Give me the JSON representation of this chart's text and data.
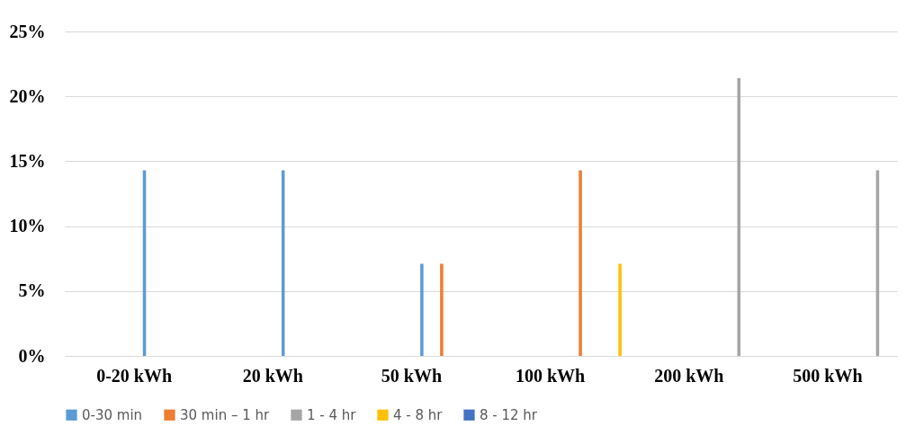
{
  "chart_data": {
    "type": "bar",
    "categories": [
      "0-20 kWh",
      "20 kWh",
      "50 kWh",
      "100 kWh",
      "200 kWh",
      "500 kWh"
    ],
    "series": [
      {
        "name": "0-30 min",
        "color": "#5b9bd5",
        "values": [
          14.3,
          14.3,
          7.1,
          0,
          0,
          0
        ]
      },
      {
        "name": "30 min – 1 hr",
        "color": "#ed7d31",
        "values": [
          0,
          0,
          7.1,
          14.3,
          0,
          0
        ]
      },
      {
        "name": "1 - 4 hr",
        "color": "#a5a5a5",
        "values": [
          0,
          0,
          0,
          0,
          21.4,
          14.3
        ]
      },
      {
        "name": "4 - 8 hr",
        "color": "#ffc000",
        "values": [
          0,
          0,
          0,
          7.1,
          0,
          0
        ]
      },
      {
        "name": "8 - 12 hr",
        "color": "#4472c4",
        "values": [
          0,
          0,
          0,
          0,
          0,
          0
        ]
      }
    ],
    "ylim": [
      0,
      25
    ],
    "yticks": [
      {
        "value": 0,
        "label": "0%"
      },
      {
        "value": 5,
        "label": "5%"
      },
      {
        "value": 10,
        "label": "10%"
      },
      {
        "value": 15,
        "label": "15%"
      },
      {
        "value": 20,
        "label": "20%"
      },
      {
        "value": 25,
        "label": "25%"
      }
    ],
    "grid": "y",
    "legend": "bottom"
  }
}
